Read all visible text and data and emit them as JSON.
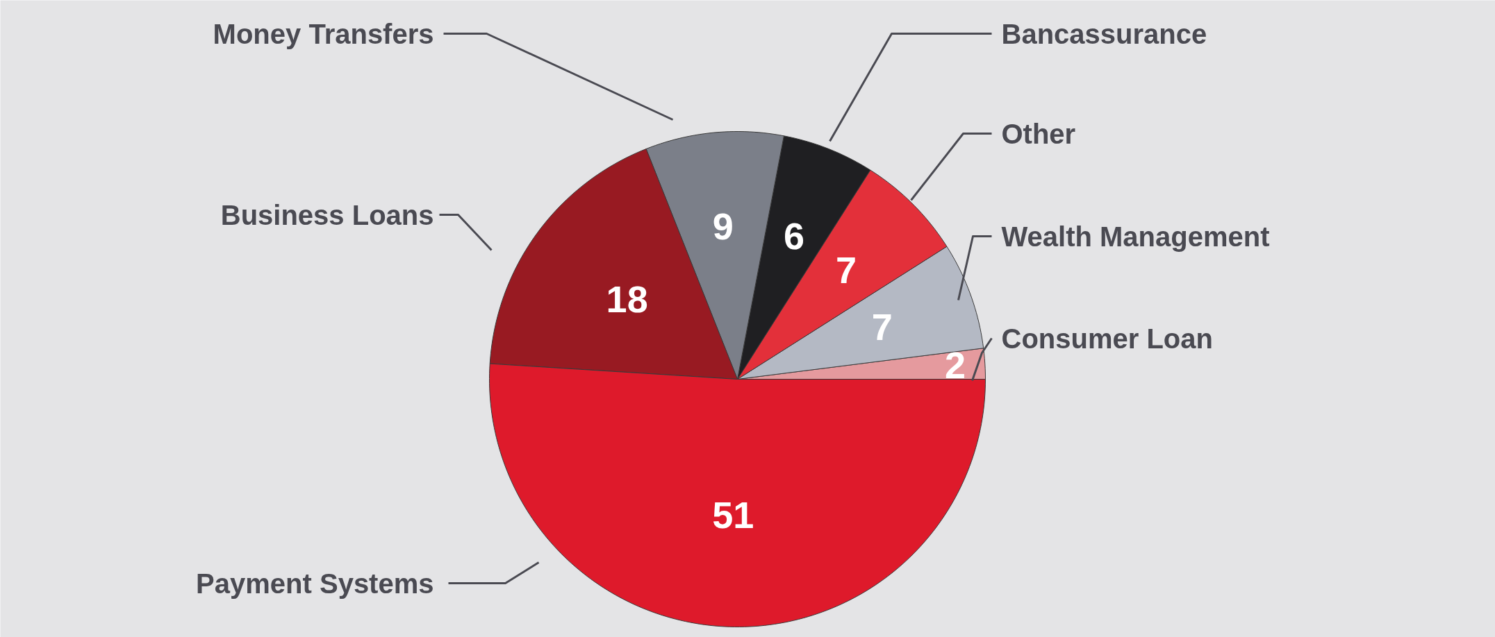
{
  "chart_data": {
    "type": "pie",
    "categories": [
      "Consumer Loan",
      "Wealth Management",
      "Other",
      "Bancassurance",
      "Money Transfers",
      "Business Loans",
      "Payment Systems"
    ],
    "values": [
      2,
      7,
      7,
      6,
      9,
      18,
      51
    ],
    "colors": [
      "#e59a9e",
      "#b4b9c4",
      "#e3303a",
      "#1f1f22",
      "#7b7f89",
      "#981a22",
      "#de1a2b"
    ],
    "data_labels": true
  }
}
